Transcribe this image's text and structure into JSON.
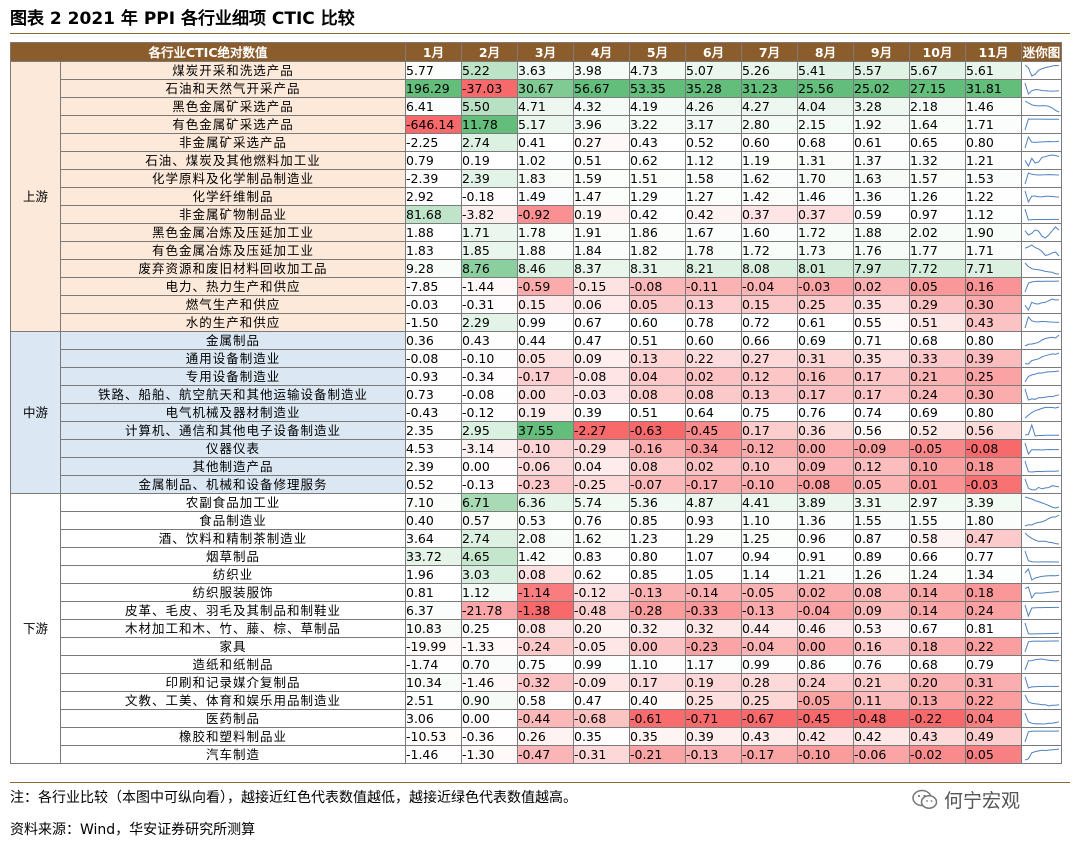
{
  "title": "图表 2 2021 年 PPI 各行业细项 CTIC 比较",
  "table": {
    "header_label": "各行业CTIC绝对数值",
    "months": [
      "1月",
      "2月",
      "3月",
      "4月",
      "5月",
      "6月",
      "7月",
      "8月",
      "9月",
      "10月",
      "11月"
    ],
    "spark_header": "迷你图",
    "groups": [
      {
        "name": "上游",
        "bg": "#fde9d9",
        "rows": [
          {
            "name": "煤炭开采和洗选产品",
            "values": [
              5.77,
              5.22,
              3.63,
              3.98,
              4.73,
              5.07,
              5.26,
              5.41,
              5.57,
              5.67,
              5.61
            ]
          },
          {
            "name": "石油和天然气开采产品",
            "values": [
              196.29,
              -37.03,
              30.67,
              56.67,
              53.35,
              35.28,
              31.23,
              25.56,
              25.02,
              27.15,
              31.81
            ]
          },
          {
            "name": "黑色金属矿采选产品",
            "values": [
              6.41,
              5.5,
              4.71,
              4.32,
              4.19,
              4.26,
              4.27,
              4.04,
              3.28,
              2.18,
              1.46
            ]
          },
          {
            "name": "有色金属矿采选产品",
            "values": [
              -646.14,
              11.78,
              5.17,
              3.96,
              3.22,
              3.17,
              2.8,
              2.15,
              1.92,
              1.64,
              1.71
            ]
          },
          {
            "name": "非金属矿采选产品",
            "values": [
              -2.25,
              2.74,
              0.41,
              0.27,
              0.43,
              0.52,
              0.6,
              0.68,
              0.61,
              0.65,
              0.8
            ]
          },
          {
            "name": "石油、煤炭及其他燃料加工业",
            "values": [
              0.79,
              0.19,
              1.02,
              0.51,
              0.62,
              1.12,
              1.19,
              1.31,
              1.37,
              1.32,
              1.21
            ]
          },
          {
            "name": "化学原料及化学制品制造业",
            "values": [
              -2.39,
              2.39,
              1.83,
              1.59,
              1.51,
              1.58,
              1.62,
              1.7,
              1.63,
              1.57,
              1.53
            ]
          },
          {
            "name": "化学纤维制品",
            "values": [
              2.92,
              -0.18,
              1.49,
              1.47,
              1.29,
              1.27,
              1.42,
              1.46,
              1.36,
              1.26,
              1.22
            ]
          },
          {
            "name": "非金属矿物制品业",
            "values": [
              81.68,
              -3.82,
              -0.92,
              0.19,
              0.42,
              0.42,
              0.37,
              0.37,
              0.59,
              0.97,
              1.12
            ]
          },
          {
            "name": "黑色金属冶炼及压延加工业",
            "values": [
              1.88,
              1.71,
              1.78,
              1.91,
              1.86,
              1.67,
              1.6,
              1.72,
              1.88,
              2.02,
              1.9
            ]
          },
          {
            "name": "有色金属冶炼及压延加工业",
            "values": [
              1.83,
              1.85,
              1.88,
              1.84,
              1.82,
              1.78,
              1.72,
              1.73,
              1.76,
              1.77,
              1.71
            ]
          },
          {
            "name": "废弃资源和废旧材料回收加工品",
            "values": [
              9.28,
              8.76,
              8.46,
              8.37,
              8.31,
              8.21,
              8.08,
              8.01,
              7.97,
              7.72,
              7.71
            ]
          },
          {
            "name": "电力、热力生产和供应",
            "values": [
              -7.85,
              -1.44,
              -0.59,
              -0.15,
              -0.08,
              -0.11,
              -0.04,
              -0.03,
              0.02,
              0.05,
              0.16
            ]
          },
          {
            "name": "燃气生产和供应",
            "values": [
              -0.03,
              -0.31,
              0.15,
              0.06,
              0.05,
              0.13,
              0.15,
              0.25,
              0.35,
              0.29,
              0.3
            ]
          },
          {
            "name": "水的生产和供应",
            "values": [
              -1.5,
              2.29,
              0.99,
              0.67,
              0.6,
              0.78,
              0.72,
              0.61,
              0.55,
              0.51,
              0.43
            ]
          }
        ]
      },
      {
        "name": "中游",
        "bg": "#dbe8f3",
        "rows": [
          {
            "name": "金属制品",
            "values": [
              0.36,
              0.43,
              0.44,
              0.47,
              0.51,
              0.6,
              0.66,
              0.69,
              0.71,
              0.68,
              0.8
            ]
          },
          {
            "name": "通用设备制造业",
            "values": [
              -0.08,
              -0.1,
              0.05,
              0.09,
              0.13,
              0.22,
              0.27,
              0.31,
              0.35,
              0.33,
              0.39
            ]
          },
          {
            "name": "专用设备制造业",
            "values": [
              -0.93,
              -0.34,
              -0.17,
              -0.08,
              0.04,
              0.02,
              0.12,
              0.16,
              0.17,
              0.21,
              0.25
            ]
          },
          {
            "name": "铁路、船舶、航空航天和其他运输设备制造业",
            "values": [
              0.73,
              -0.08,
              0.0,
              -0.03,
              0.08,
              0.08,
              0.13,
              0.17,
              0.17,
              0.24,
              0.3
            ]
          },
          {
            "name": "电气机械及器材制造业",
            "values": [
              -0.43,
              -0.12,
              0.19,
              0.39,
              0.51,
              0.64,
              0.75,
              0.76,
              0.74,
              0.69,
              0.8
            ]
          },
          {
            "name": "计算机、通信和其他电子设备制造业",
            "values": [
              2.35,
              2.95,
              37.55,
              -2.27,
              -0.63,
              -0.45,
              0.17,
              0.36,
              0.56,
              0.52,
              0.56
            ]
          },
          {
            "name": "仪器仪表",
            "values": [
              4.53,
              -3.14,
              -0.1,
              -0.29,
              -0.16,
              -0.34,
              -0.12,
              0.0,
              -0.09,
              -0.05,
              -0.08
            ]
          },
          {
            "name": "其他制造产品",
            "values": [
              2.39,
              0.0,
              -0.06,
              0.04,
              0.08,
              0.02,
              0.1,
              0.09,
              0.12,
              0.1,
              0.18
            ]
          },
          {
            "name": "金属制品、机械和设备修理服务",
            "values": [
              0.52,
              -0.13,
              -0.23,
              -0.25,
              -0.07,
              -0.17,
              -0.1,
              -0.08,
              0.05,
              0.01,
              -0.03
            ]
          }
        ]
      },
      {
        "name": "下游",
        "bg": "#ffffff",
        "rows": [
          {
            "name": "农副食品加工业",
            "values": [
              7.1,
              6.71,
              6.36,
              5.74,
              5.36,
              4.87,
              4.41,
              3.89,
              3.31,
              2.97,
              3.39
            ]
          },
          {
            "name": "食品制造业",
            "values": [
              0.4,
              0.57,
              0.53,
              0.76,
              0.85,
              0.93,
              1.1,
              1.36,
              1.55,
              1.55,
              1.8
            ]
          },
          {
            "name": "酒、饮料和精制茶制造业",
            "values": [
              3.64,
              2.74,
              2.08,
              1.62,
              1.23,
              1.29,
              1.25,
              0.96,
              0.87,
              0.58,
              0.47
            ]
          },
          {
            "name": "烟草制品",
            "values": [
              33.72,
              4.65,
              1.42,
              0.83,
              0.8,
              1.07,
              0.94,
              0.91,
              0.89,
              0.66,
              0.77
            ]
          },
          {
            "name": "纺织业",
            "values": [
              1.96,
              3.03,
              0.08,
              0.62,
              0.85,
              1.05,
              1.14,
              1.21,
              1.26,
              1.24,
              1.34
            ]
          },
          {
            "name": "纺织服装服饰",
            "values": [
              0.81,
              1.12,
              -1.14,
              -0.12,
              -0.13,
              -0.14,
              -0.05,
              0.02,
              0.08,
              0.14,
              0.18
            ]
          },
          {
            "name": "皮革、毛皮、羽毛及其制品和制鞋业",
            "values": [
              6.37,
              -21.78,
              -1.38,
              -0.48,
              -0.28,
              -0.33,
              -0.13,
              -0.04,
              0.09,
              0.14,
              0.24
            ]
          },
          {
            "name": "木材加工和木、竹、藤、棕、草制品",
            "values": [
              10.83,
              0.25,
              0.08,
              0.2,
              0.32,
              0.32,
              0.44,
              0.46,
              0.53,
              0.67,
              0.81
            ]
          },
          {
            "name": "家具",
            "values": [
              -19.99,
              -1.33,
              -0.24,
              -0.05,
              0.0,
              -0.23,
              -0.04,
              0.0,
              0.16,
              0.18,
              0.22
            ]
          },
          {
            "name": "造纸和纸制品",
            "values": [
              -1.74,
              0.7,
              0.75,
              0.99,
              1.1,
              1.17,
              0.99,
              0.86,
              0.76,
              0.68,
              0.79
            ]
          },
          {
            "name": "印刷和记录媒介复制品",
            "values": [
              10.34,
              -1.46,
              -0.32,
              -0.09,
              0.17,
              0.19,
              0.28,
              0.24,
              0.21,
              0.2,
              0.31
            ]
          },
          {
            "name": "文教、工美、体育和娱乐用品制造业",
            "values": [
              2.51,
              0.9,
              0.58,
              0.47,
              0.4,
              0.25,
              0.25,
              -0.05,
              0.11,
              0.13,
              0.22
            ]
          },
          {
            "name": "医药制品",
            "values": [
              3.06,
              0.0,
              -0.44,
              -0.68,
              -0.61,
              -0.71,
              -0.67,
              -0.45,
              -0.48,
              -0.22,
              0.04
            ]
          },
          {
            "name": "橡胶和塑料制品业",
            "values": [
              -10.53,
              -0.36,
              0.26,
              0.35,
              0.35,
              0.39,
              0.43,
              0.42,
              0.42,
              0.43,
              0.49
            ]
          },
          {
            "name": "汽车制造",
            "values": [
              -1.46,
              -1.3,
              -0.47,
              -0.31,
              -0.21,
              -0.13,
              -0.17,
              -0.1,
              -0.06,
              -0.02,
              0.05
            ]
          }
        ]
      }
    ],
    "colors": {
      "high": "#63be7b",
      "low": "#f8696b",
      "mid": "#ffffff",
      "spark": "#4f81bd"
    }
  },
  "note": "注：各行业比较（本图中可纵向看），越接近红色代表数值越低，越接近绿色代表数值越高。",
  "source": "资料来源：Wind，华安证券研究所测算",
  "brand": "何宁宏观"
}
